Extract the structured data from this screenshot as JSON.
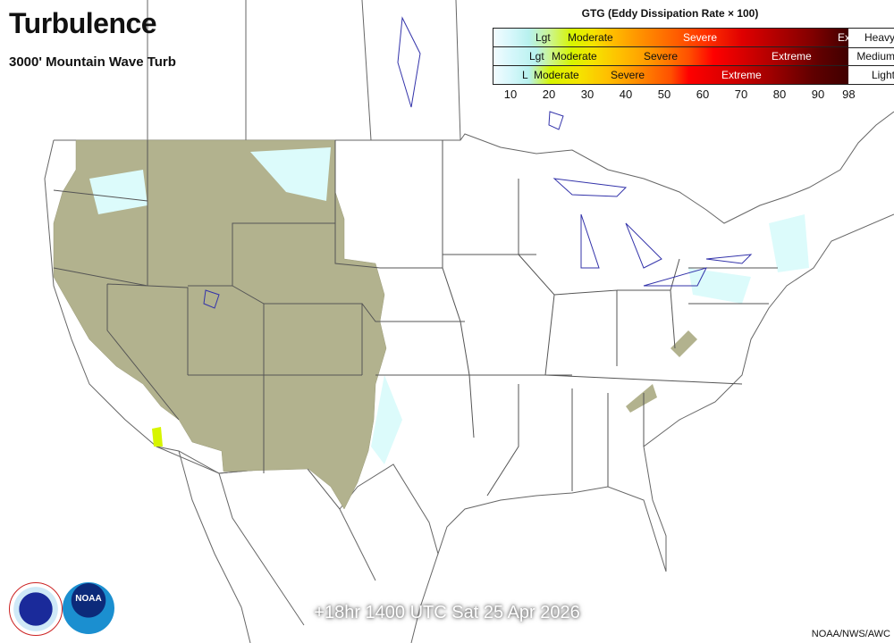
{
  "title": "Turbulence",
  "subtitle": "3000' Mountain Wave Turb",
  "legend": {
    "title": "GTG (Eddy Dissipation Rate × 100)",
    "rows": [
      {
        "level": "Heavy",
        "labels": [
          {
            "text": "Lgt",
            "at": 16
          },
          {
            "text": "Moderate",
            "at": 25
          },
          {
            "text": "Severe",
            "at": 54
          },
          {
            "text": "Ex",
            "at": 95
          }
        ]
      },
      {
        "level": "Medium",
        "labels": [
          {
            "text": "Lgt",
            "at": 15
          },
          {
            "text": "Moderate",
            "at": 21
          },
          {
            "text": "Severe",
            "at": 43
          },
          {
            "text": "Extreme",
            "at": 79
          }
        ]
      },
      {
        "level": "Light",
        "labels": [
          {
            "text": "L",
            "at": 14
          },
          {
            "text": "Moderate",
            "at": 17
          },
          {
            "text": "Severe",
            "at": 34
          },
          {
            "text": "Extreme",
            "at": 68
          }
        ]
      }
    ],
    "ticks": [
      "10",
      "20",
      "30",
      "40",
      "50",
      "60",
      "70",
      "80",
      "90",
      "98"
    ]
  },
  "valid_time": "+18hr 1400 UTC Sat 25 Apr 2026",
  "credit": "NOAA/NWS/AWC",
  "logos": {
    "nws": "NATIONAL WEATHER SERVICE",
    "noaa": "NOAA"
  },
  "colors": {
    "turbulence_area": "#b2b28e",
    "light_turb": "#dcfbfb",
    "lgt_yellow": "#d7f500",
    "borders": "#555555",
    "lakes": "#3333aa"
  }
}
